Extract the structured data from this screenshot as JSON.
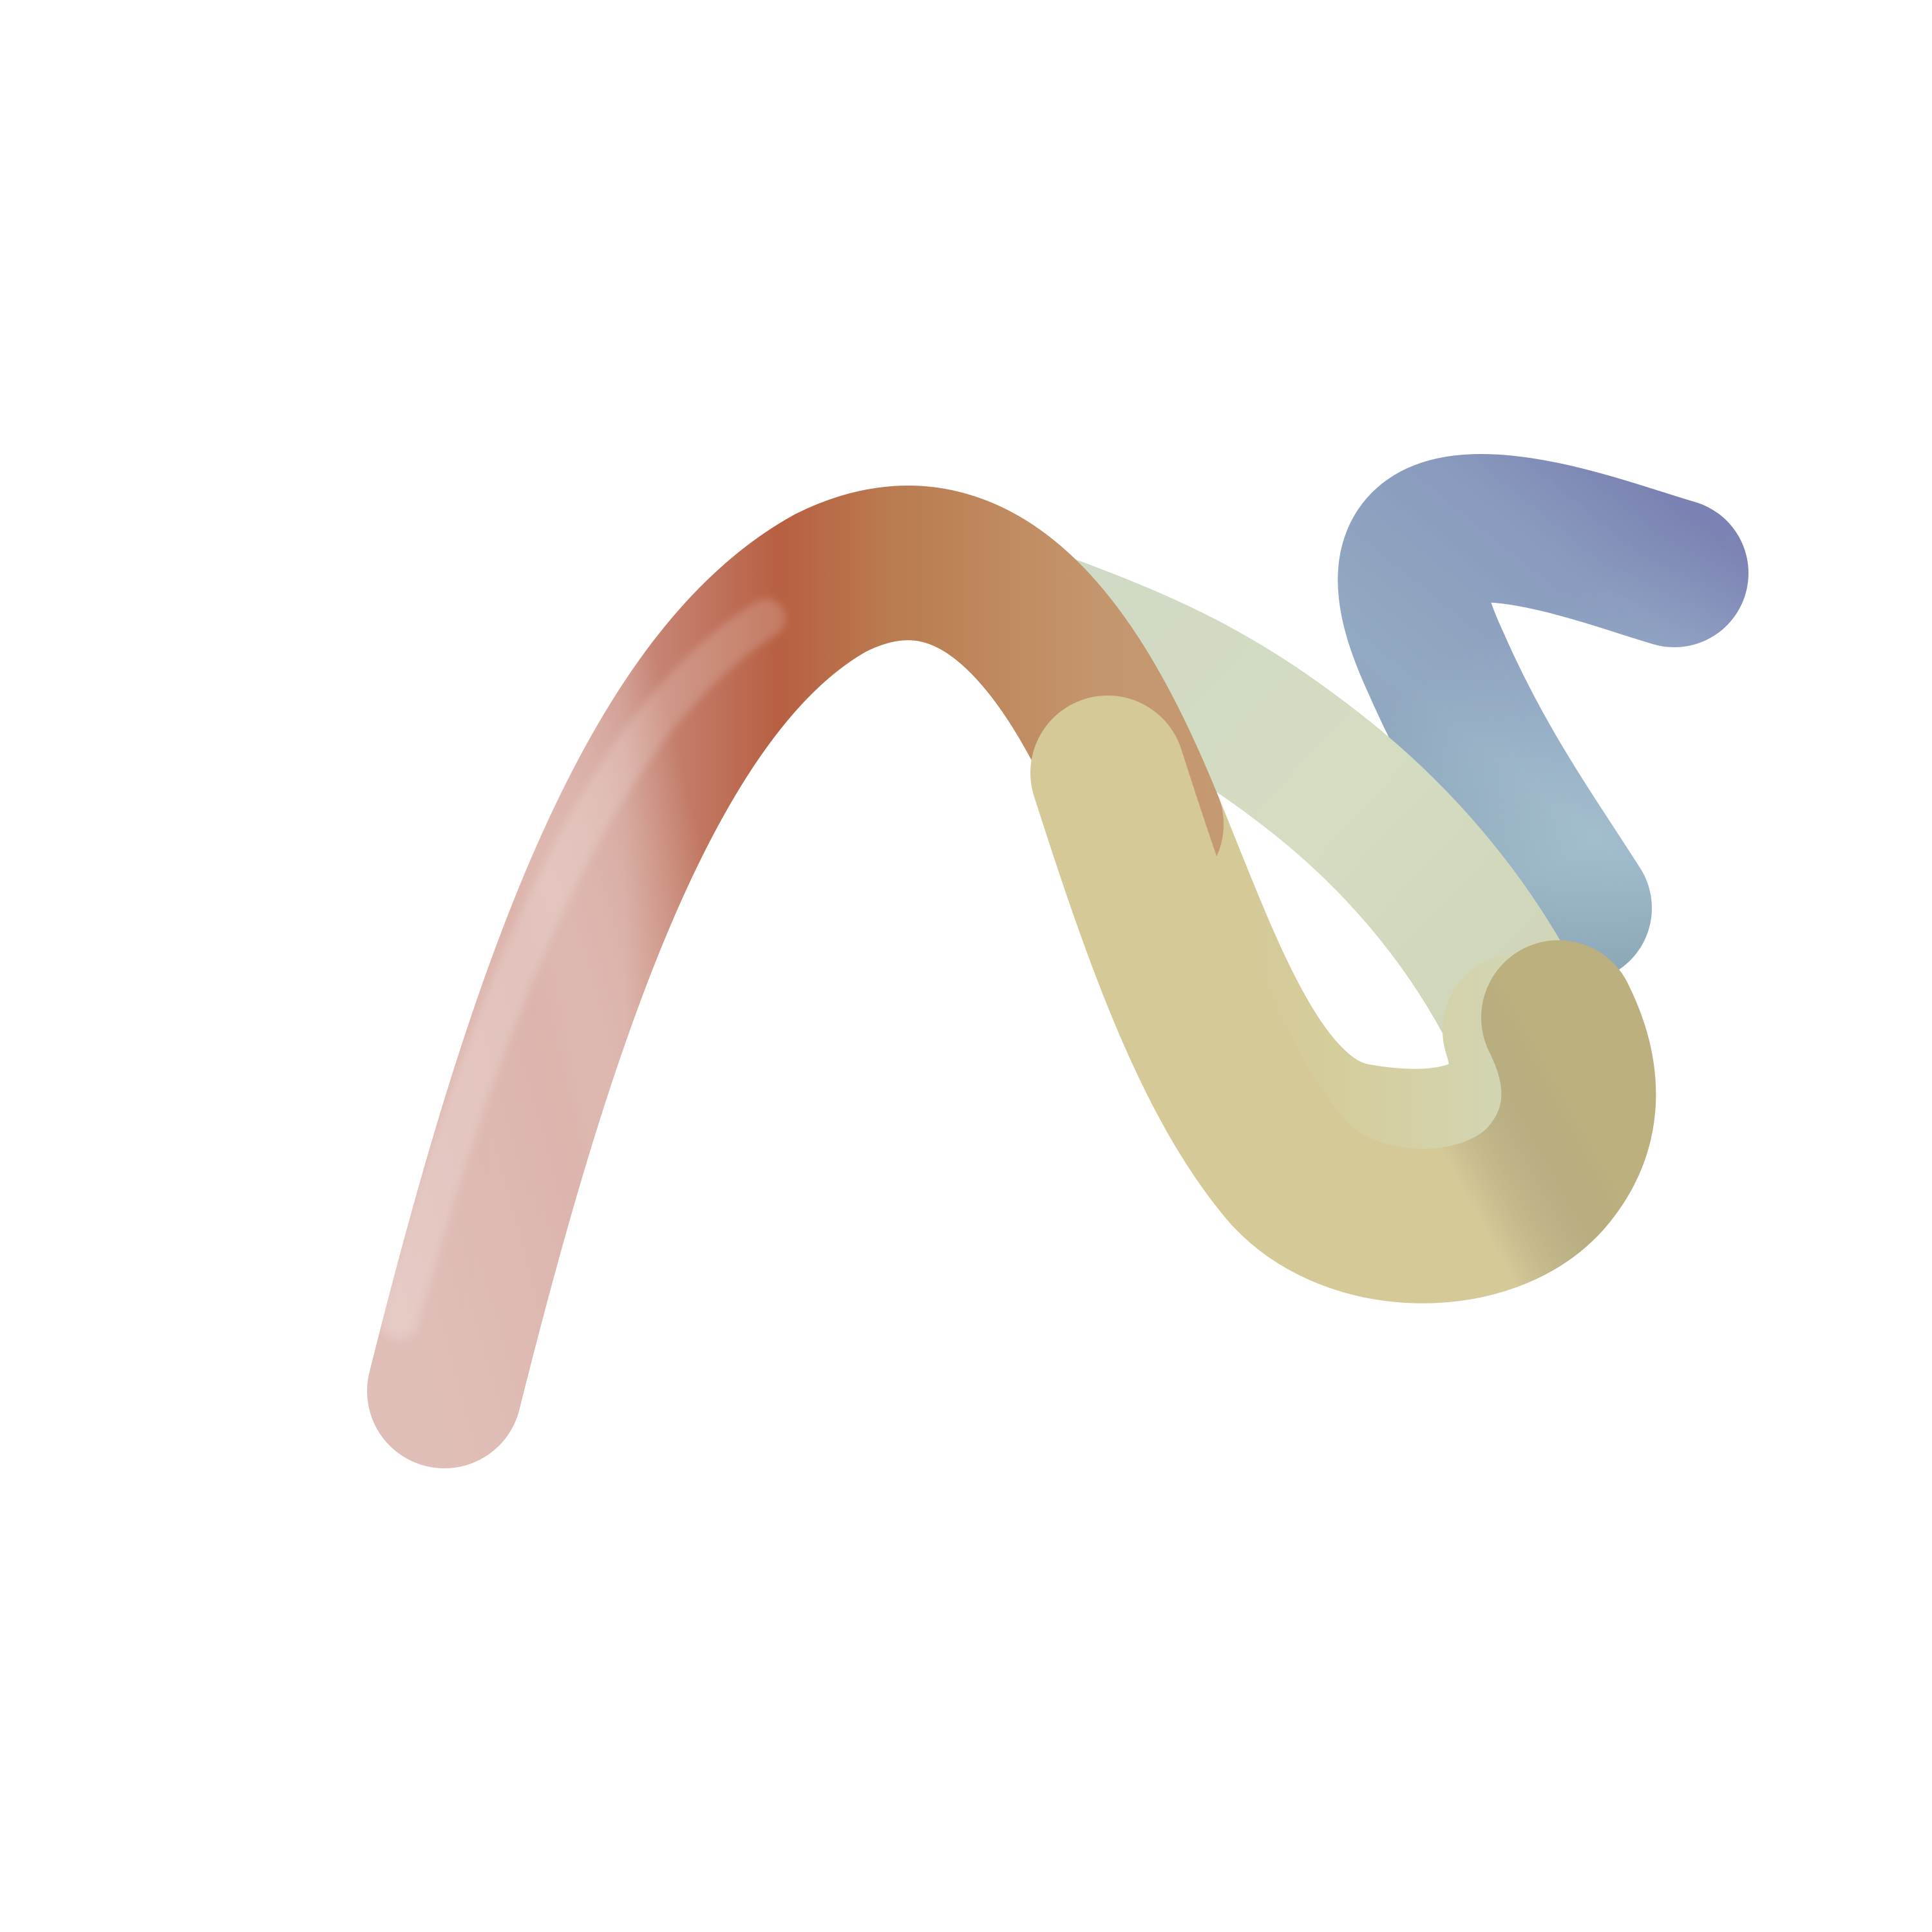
{
  "scene": {
    "background_color": "#ffffff",
    "subject": "twisted-gradient-tube",
    "colors": {
      "pink": "#dcb6af",
      "rust": "#c0704a",
      "sand": "#d5c996",
      "sage": "#d3dbc3",
      "steel_blue": "#a6bed0",
      "periwinkle": "#8f93bf"
    }
  }
}
